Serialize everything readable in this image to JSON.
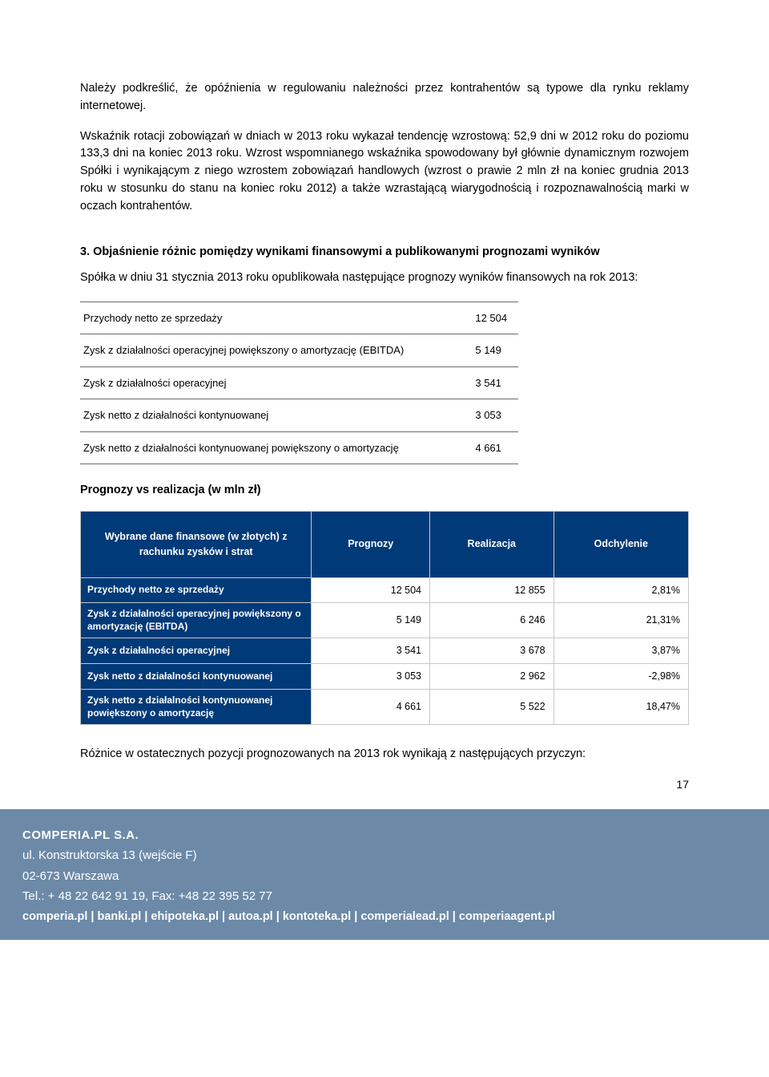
{
  "colors": {
    "header_bg": "#003a78",
    "header_text": "#ffffff",
    "footer_bg": "#6c8aa8",
    "footer_text": "#ffffff",
    "body_text": "#000000",
    "table_border": "#c8c8c8",
    "simple_table_border": "#6b6b6b"
  },
  "paragraphs": {
    "p1": "Należy podkreślić, że opóźnienia w regulowaniu należności przez kontrahentów są typowe dla rynku reklamy internetowej.",
    "p2": "Wskaźnik rotacji zobowiązań w dniach w 2013 roku wykazał tendencję wzrostową: 52,9 dni w 2012 roku do poziomu 133,3  dni na koniec 2013 roku. Wzrost wspomnianego wskaźnika spowodowany był głównie dynamicznym rozwojem Spółki i wynikającym z niego wzrostem zobowiązań handlowych (wzrost o prawie 2 mln zł na koniec grudnia 2013 roku w stosunku do stanu na koniec roku 2012) a także wzrastającą wiarygodnością i rozpoznawalnością marki w oczach kontrahentów."
  },
  "section": {
    "heading": "3.  Objaśnienie różnic pomiędzy wynikami finansowymi a publikowanymi prognozami wyników",
    "intro": "Spółka w dniu 31 stycznia 2013 roku opublikowała następujące prognozy wyników finansowych na rok 2013:"
  },
  "forecast_table": {
    "rows": [
      {
        "label": "Przychody netto ze sprzedaży",
        "value": "12 504"
      },
      {
        "label": "Zysk z działalności operacyjnej powiększony o amortyzację (EBITDA)",
        "value": "5 149"
      },
      {
        "label": "Zysk z działalności operacyjnej",
        "value": "3 541"
      },
      {
        "label": "Zysk netto z działalności kontynuowanej",
        "value": "3 053"
      },
      {
        "label": "Zysk netto z działalności kontynuowanej powiększony o amortyzację",
        "value": "4 661"
      }
    ]
  },
  "subtitle": "Prognozy vs realizacja (w mln zł)",
  "comp_table": {
    "headers": {
      "c1": "Wybrane dane finansowe (w złotych) z rachunku zysków i strat",
      "c2": "Prognozy",
      "c3": "Realizacja",
      "c4": "Odchylenie"
    },
    "rows": [
      {
        "label": "Przychody netto ze sprzedaży",
        "prognozy": "12 504",
        "realizacja": "12 855",
        "odchylenie": "2,81%"
      },
      {
        "label": "Zysk z działalności operacyjnej powiększony o amortyzację (EBITDA)",
        "prognozy": "5 149",
        "realizacja": "6 246",
        "odchylenie": "21,31%"
      },
      {
        "label": "Zysk z działalności operacyjnej",
        "prognozy": "3 541",
        "realizacja": "3 678",
        "odchylenie": "3,87%"
      },
      {
        "label": "Zysk netto z działalności kontynuowanej",
        "prognozy": "3 053",
        "realizacja": "2 962",
        "odchylenie": "-2,98%"
      },
      {
        "label": "Zysk netto z działalności kontynuowanej powiększony o amortyzację",
        "prognozy": "4 661",
        "realizacja": "5 522",
        "odchylenie": "18,47%"
      }
    ]
  },
  "closing_para": "Różnice w ostatecznych pozycji prognozowanych na 2013 rok wynikają z następujących przyczyn:",
  "page_number": "17",
  "footer": {
    "company": "COMPERIA.PL S.A.",
    "address1": "ul. Konstruktorska 13 (wejście F)",
    "address2": "02-673 Warszawa",
    "contact": "Tel.: + 48 22 642 91 19,  Fax: +48 22 395 52 77",
    "sites": "comperia.pl | banki.pl | ehipoteka.pl | autoa.pl | kontoteka.pl | comperialead.pl | comperiaagent.pl"
  }
}
